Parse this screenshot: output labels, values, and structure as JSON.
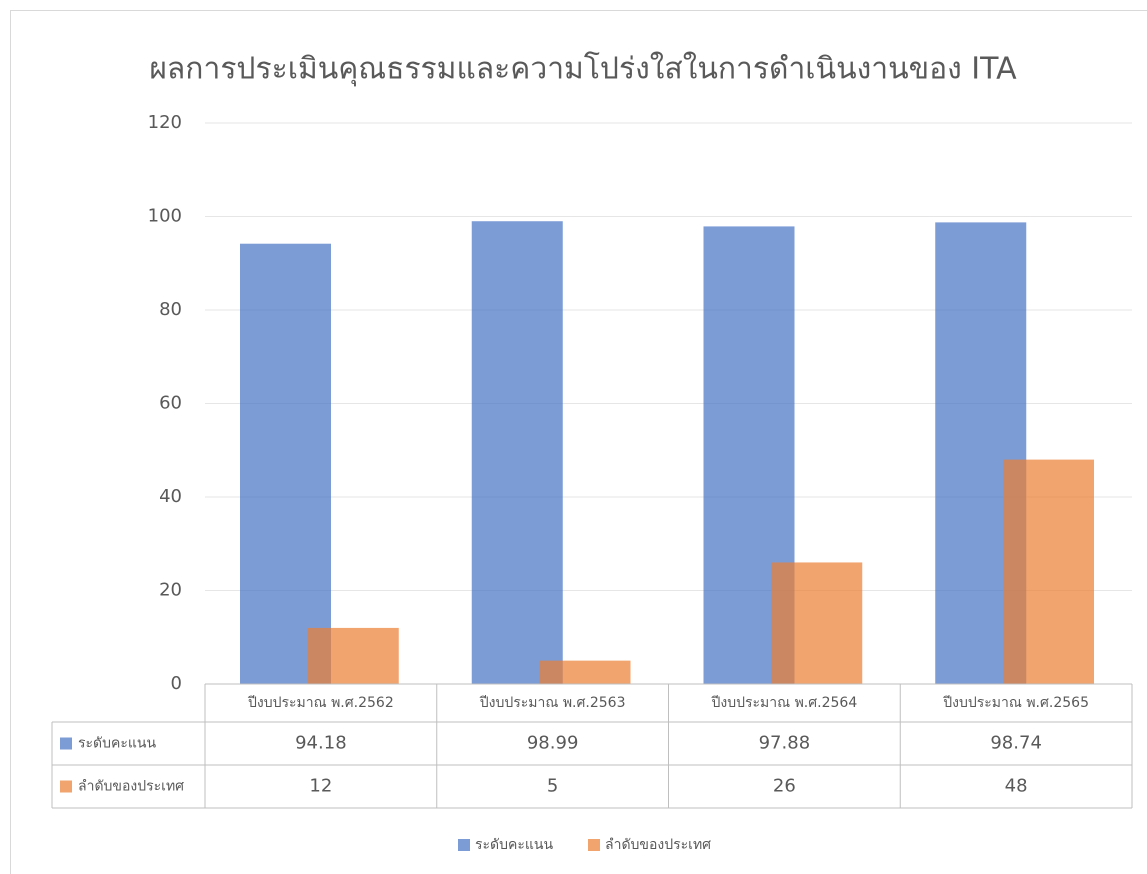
{
  "chart_data": {
    "type": "bar",
    "title": "ผลการประเมินคุณธรรมและความโปร่งใสในการดำเนินงานของ ITA",
    "categories": [
      "ปีงบประมาณ พ.ศ.2562",
      "ปีงบประมาณ พ.ศ.2563",
      "ปีงบประมาณ พ.ศ.2564",
      "ปีงบประมาณ พ.ศ.2565"
    ],
    "series": [
      {
        "name": "ระดับคะแนน",
        "color": "#4472c4",
        "values": [
          94.18,
          98.99,
          97.88,
          98.74
        ]
      },
      {
        "name": "ลำดับของประเทศ",
        "color": "#ed7d31",
        "values": [
          12,
          5,
          26,
          48
        ]
      }
    ],
    "ylim": [
      0,
      120
    ],
    "yticks": [
      0,
      20,
      40,
      60,
      80,
      100,
      120
    ],
    "grid": true
  }
}
